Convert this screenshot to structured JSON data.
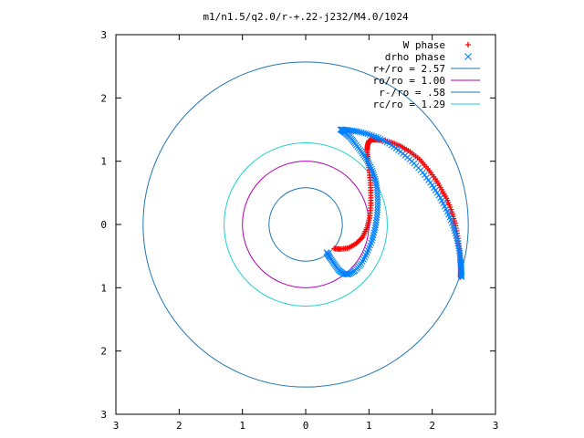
{
  "chart_data": {
    "type": "scatter",
    "title": "m1/n1.5/q2.0/r-+.22-j232/M4.0/1024",
    "xlabel": "",
    "ylabel": "",
    "xlim": [
      -3,
      3
    ],
    "ylim": [
      -3,
      3
    ],
    "x_tick_values": [
      -3,
      -2,
      -1,
      0,
      1,
      2,
      3
    ],
    "x_tick_labels": [
      "3",
      "2",
      "1",
      "0",
      "1",
      "2",
      "3"
    ],
    "y_tick_values": [
      3,
      2,
      1,
      0,
      -1,
      -2,
      -3
    ],
    "y_tick_labels": [
      "3",
      "2",
      "1",
      "0",
      "1",
      "2",
      "3"
    ],
    "grid": false,
    "legend_position": "top-right",
    "legend": [
      {
        "label": "W phase",
        "kind": "marker-plus",
        "color": "#ff0000"
      },
      {
        "label": "drho phase",
        "kind": "marker-x",
        "color": "#0080ff"
      },
      {
        "label": "r+/ro = 2.57",
        "kind": "line",
        "color": "#1f77b4"
      },
      {
        "label": "ro/ro = 1.00",
        "kind": "line",
        "color": "#b000b0"
      },
      {
        "label": "r-/ro = .58",
        "kind": "line",
        "color": "#1f77b4"
      },
      {
        "label": "rc/ro = 1.29",
        "kind": "line",
        "color": "#20d0d0"
      }
    ],
    "circles": [
      {
        "name": "r+/ro",
        "radius": 2.57,
        "color": "#1f77b4"
      },
      {
        "name": "ro/ro",
        "radius": 1.0,
        "color": "#b000b0"
      },
      {
        "name": "r-/ro",
        "radius": 0.58,
        "color": "#1f77b4"
      },
      {
        "name": "rc/ro",
        "radius": 1.29,
        "color": "#20d0d0"
      }
    ],
    "series": [
      {
        "name": "W phase",
        "marker": "plus",
        "color": "#ff0000",
        "x": [
          0.45,
          0.55,
          0.68,
          0.8,
          0.9,
          0.97,
          1.01,
          1.03,
          1.03,
          1.02,
          1.0,
          0.98,
          0.97,
          0.98,
          1.0,
          1.05,
          1.1,
          1.2,
          1.35,
          1.5,
          1.65,
          1.8,
          1.93,
          2.05,
          2.15,
          2.24,
          2.31,
          2.36,
          2.4,
          2.43,
          2.44,
          2.45,
          2.45,
          2.45,
          2.45
        ],
        "y": [
          -0.38,
          -0.39,
          -0.37,
          -0.3,
          -0.2,
          -0.05,
          0.1,
          0.3,
          0.5,
          0.7,
          0.9,
          1.05,
          1.18,
          1.26,
          1.32,
          1.34,
          1.34,
          1.33,
          1.3,
          1.24,
          1.15,
          1.03,
          0.88,
          0.72,
          0.55,
          0.38,
          0.2,
          0.02,
          -0.18,
          -0.38,
          -0.55,
          -0.68,
          -0.76,
          -0.81,
          -0.83
        ]
      },
      {
        "name": "drho phase",
        "marker": "x",
        "color": "#0080ff",
        "x": [
          0.33,
          0.38,
          0.45,
          0.52,
          0.6,
          0.68,
          0.78,
          0.88,
          0.97,
          1.05,
          1.1,
          1.13,
          1.14,
          1.13,
          1.1,
          1.04,
          0.97,
          0.88,
          0.78,
          0.7,
          0.62,
          0.57,
          0.55,
          0.58,
          0.68,
          0.82,
          0.98,
          1.15,
          1.32,
          1.5,
          1.68,
          1.85,
          2.0,
          2.13,
          2.24,
          2.33,
          2.39,
          2.43,
          2.45,
          2.46,
          2.46,
          2.46
        ],
        "y": [
          -0.44,
          -0.52,
          -0.62,
          -0.72,
          -0.78,
          -0.79,
          -0.73,
          -0.62,
          -0.45,
          -0.25,
          -0.05,
          0.15,
          0.35,
          0.55,
          0.72,
          0.88,
          1.02,
          1.15,
          1.28,
          1.38,
          1.45,
          1.49,
          1.5,
          1.5,
          1.49,
          1.47,
          1.43,
          1.37,
          1.28,
          1.15,
          1.0,
          0.82,
          0.62,
          0.42,
          0.2,
          -0.02,
          -0.22,
          -0.42,
          -0.58,
          -0.7,
          -0.78,
          -0.83
        ]
      }
    ]
  }
}
